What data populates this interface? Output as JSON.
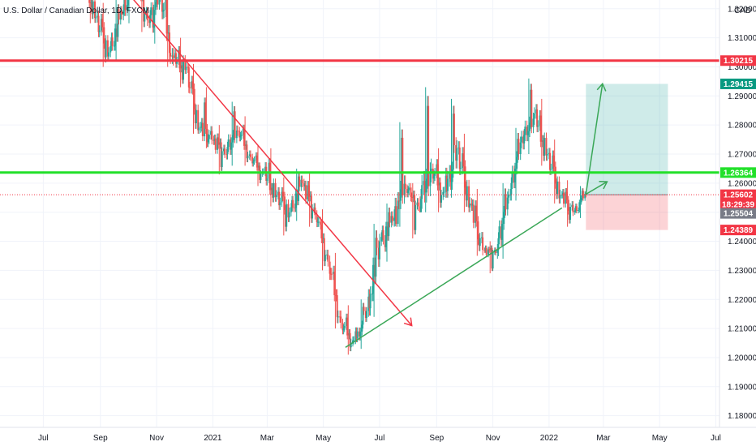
{
  "chart": {
    "title": "U.S. Dollar / Canadian Dollar, 1D, FXCM",
    "currency": "CAD",
    "countdown": "18:29:39"
  },
  "colors": {
    "up": "#26a69a",
    "down": "#ef5350",
    "red_line": "#f23645",
    "green_line": "#22e02a",
    "trend_red": "#f23645",
    "trend_green": "#3aa757",
    "profit_zone": "rgba(38,166,154,0.22)",
    "loss_zone": "rgba(242,54,69,0.22)",
    "grid": "#f0f3fa",
    "axis_bg": "#ffffff"
  },
  "price_labels": [
    {
      "text": "1.30215",
      "bg": "#f23645"
    },
    {
      "text": "1.29415",
      "bg": "#089981"
    },
    {
      "text": "1.26364",
      "bg": "#22e02a"
    },
    {
      "text": "1.25602",
      "bg": "#f23645"
    },
    {
      "text": "1.25504",
      "bg": "#787b86"
    },
    {
      "text": "1.24389",
      "bg": "#f23645"
    }
  ],
  "chart_data": {
    "type": "candlestick",
    "x_tick_labels": [
      "Jul",
      "Sep",
      "Nov",
      "2021",
      "Mar",
      "May",
      "Jul",
      "Sep",
      "Nov",
      "2022",
      "Mar",
      "May",
      "Jul"
    ],
    "y_tick_labels": [
      "1.18000",
      "1.19000",
      "1.20000",
      "1.21000",
      "1.22000",
      "1.23000",
      "1.24000",
      "1.25000",
      "1.26000",
      "1.27000",
      "1.28000",
      "1.29000",
      "1.30000",
      "1.31000",
      "1.32000"
    ],
    "y_range": [
      1.176,
      1.323
    ],
    "x_range": [
      "2020-05-15",
      "2022-07-05"
    ],
    "horizontal_levels": [
      {
        "price": 1.30215,
        "color": "red"
      },
      {
        "price": 1.26364,
        "color": "green"
      }
    ],
    "current_price": 1.25602,
    "trend_lines": [
      {
        "from": [
          "2020-08-01",
          1.348
        ],
        "to": [
          "2021-08-05",
          1.211
        ],
        "color": "red"
      },
      {
        "from": [
          "2021-05-25",
          1.2035
        ],
        "to": [
          "2022-01-15",
          1.2515
        ],
        "color": "green"
      }
    ],
    "projection_arrows": [
      {
        "from": [
          "2022-02-10",
          1.2562
        ],
        "to": [
          "2022-02-28",
          1.2942
        ]
      },
      {
        "from": [
          "2022-02-10",
          1.2562
        ],
        "to": [
          "2022-03-05",
          1.2605
        ]
      }
    ],
    "position": {
      "start": "2022-02-10",
      "end": "2022-05-10",
      "entry": 1.25602,
      "target": 1.29415,
      "stop": 1.24389
    },
    "ohlc_weekly": [
      {
        "date": "2020-08-01",
        "o": 1.34,
        "h": 1.346,
        "l": 1.33,
        "c": 1.332
      },
      {
        "date": "2020-08-15",
        "o": 1.332,
        "h": 1.336,
        "l": 1.315,
        "c": 1.317
      },
      {
        "date": "2020-08-29",
        "o": 1.317,
        "h": 1.322,
        "l": 1.3,
        "c": 1.305
      },
      {
        "date": "2020-09-12",
        "o": 1.305,
        "h": 1.323,
        "l": 1.302,
        "c": 1.318
      },
      {
        "date": "2020-09-26",
        "o": 1.318,
        "h": 1.34,
        "l": 1.315,
        "c": 1.333
      },
      {
        "date": "2020-10-10",
        "o": 1.333,
        "h": 1.336,
        "l": 1.312,
        "c": 1.316
      },
      {
        "date": "2020-10-24",
        "o": 1.316,
        "h": 1.33,
        "l": 1.308,
        "c": 1.325
      },
      {
        "date": "2020-11-07",
        "o": 1.325,
        "h": 1.332,
        "l": 1.3,
        "c": 1.303
      },
      {
        "date": "2020-11-21",
        "o": 1.303,
        "h": 1.31,
        "l": 1.293,
        "c": 1.3
      },
      {
        "date": "2020-12-05",
        "o": 1.3,
        "h": 1.301,
        "l": 1.277,
        "c": 1.279
      },
      {
        "date": "2020-12-19",
        "o": 1.279,
        "h": 1.293,
        "l": 1.272,
        "c": 1.275
      },
      {
        "date": "2021-01-02",
        "o": 1.275,
        "h": 1.28,
        "l": 1.263,
        "c": 1.27
      },
      {
        "date": "2021-01-16",
        "o": 1.27,
        "h": 1.288,
        "l": 1.266,
        "c": 1.278
      },
      {
        "date": "2021-01-30",
        "o": 1.278,
        "h": 1.283,
        "l": 1.266,
        "c": 1.269
      },
      {
        "date": "2021-02-13",
        "o": 1.269,
        "h": 1.273,
        "l": 1.259,
        "c": 1.264
      },
      {
        "date": "2021-02-27",
        "o": 1.264,
        "h": 1.272,
        "l": 1.252,
        "c": 1.256
      },
      {
        "date": "2021-03-13",
        "o": 1.256,
        "h": 1.262,
        "l": 1.242,
        "c": 1.25
      },
      {
        "date": "2021-03-27",
        "o": 1.25,
        "h": 1.265,
        "l": 1.247,
        "c": 1.26
      },
      {
        "date": "2021-04-10",
        "o": 1.26,
        "h": 1.264,
        "l": 1.245,
        "c": 1.249
      },
      {
        "date": "2021-04-24",
        "o": 1.249,
        "h": 1.251,
        "l": 1.23,
        "c": 1.233
      },
      {
        "date": "2021-05-08",
        "o": 1.233,
        "h": 1.236,
        "l": 1.21,
        "c": 1.212
      },
      {
        "date": "2021-05-22",
        "o": 1.212,
        "h": 1.218,
        "l": 1.201,
        "c": 1.206
      },
      {
        "date": "2021-06-05",
        "o": 1.206,
        "h": 1.22,
        "l": 1.203,
        "c": 1.216
      },
      {
        "date": "2021-06-19",
        "o": 1.216,
        "h": 1.246,
        "l": 1.214,
        "c": 1.24
      },
      {
        "date": "2021-07-03",
        "o": 1.24,
        "h": 1.253,
        "l": 1.233,
        "c": 1.247
      },
      {
        "date": "2021-07-17",
        "o": 1.247,
        "h": 1.281,
        "l": 1.245,
        "c": 1.258
      },
      {
        "date": "2021-07-31",
        "o": 1.258,
        "h": 1.26,
        "l": 1.241,
        "c": 1.252
      },
      {
        "date": "2021-08-14",
        "o": 1.252,
        "h": 1.293,
        "l": 1.25,
        "c": 1.265
      },
      {
        "date": "2021-08-28",
        "o": 1.265,
        "h": 1.272,
        "l": 1.25,
        "c": 1.257
      },
      {
        "date": "2021-09-11",
        "o": 1.257,
        "h": 1.289,
        "l": 1.255,
        "c": 1.272
      },
      {
        "date": "2021-09-25",
        "o": 1.272,
        "h": 1.277,
        "l": 1.25,
        "c": 1.253
      },
      {
        "date": "2021-10-09",
        "o": 1.253,
        "h": 1.258,
        "l": 1.235,
        "c": 1.237
      },
      {
        "date": "2021-10-23",
        "o": 1.237,
        "h": 1.24,
        "l": 1.229,
        "c": 1.236
      },
      {
        "date": "2021-11-06",
        "o": 1.236,
        "h": 1.26,
        "l": 1.234,
        "c": 1.256
      },
      {
        "date": "2021-11-20",
        "o": 1.256,
        "h": 1.279,
        "l": 1.254,
        "c": 1.276
      },
      {
        "date": "2021-12-04",
        "o": 1.276,
        "h": 1.296,
        "l": 1.27,
        "c": 1.284
      },
      {
        "date": "2021-12-18",
        "o": 1.284,
        "h": 1.289,
        "l": 1.266,
        "c": 1.27
      },
      {
        "date": "2022-01-01",
        "o": 1.27,
        "h": 1.275,
        "l": 1.253,
        "c": 1.256
      },
      {
        "date": "2022-01-15",
        "o": 1.256,
        "h": 1.261,
        "l": 1.245,
        "c": 1.25
      },
      {
        "date": "2022-01-29",
        "o": 1.25,
        "h": 1.259,
        "l": 1.248,
        "c": 1.256
      }
    ]
  }
}
